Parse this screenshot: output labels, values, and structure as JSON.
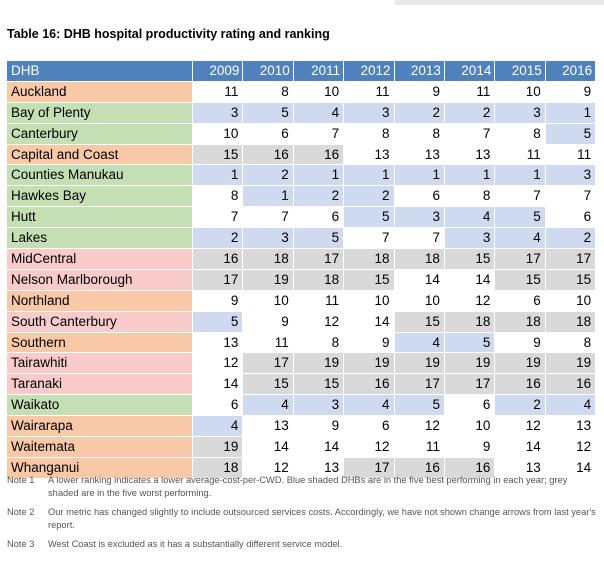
{
  "title": "Table 16: DHB hospital productivity rating and ranking",
  "colors": {
    "header": "#4f81bd",
    "green": "#c4dfb4",
    "orange": "#f9c9a7",
    "pink": "#f9cbcb",
    "best_blue": "#cfd9ef",
    "worst_grey": "#d9d9d9"
  },
  "table": {
    "header_label": "DHB",
    "years": [
      "2009",
      "2010",
      "2011",
      "2012",
      "2013",
      "2014",
      "2015",
      "2016"
    ],
    "rows": [
      {
        "name": "Auckland",
        "group": "orange",
        "values": [
          "11",
          "8",
          "10",
          "11",
          "9",
          "11",
          "10",
          "9"
        ],
        "shading": [
          "n",
          "n",
          "n",
          "n",
          "n",
          "n",
          "n",
          "n"
        ]
      },
      {
        "name": "Bay of Plenty",
        "group": "green",
        "values": [
          "3",
          "5",
          "4",
          "3",
          "2",
          "2",
          "3",
          "1"
        ],
        "shading": [
          "b",
          "b",
          "b",
          "b",
          "b",
          "b",
          "b",
          "b"
        ]
      },
      {
        "name": "Canterbury",
        "group": "green",
        "values": [
          "10",
          "6",
          "7",
          "8",
          "8",
          "7",
          "8",
          "5"
        ],
        "shading": [
          "n",
          "n",
          "n",
          "n",
          "n",
          "n",
          "n",
          "b"
        ]
      },
      {
        "name": "Capital and Coast",
        "group": "orange",
        "values": [
          "15",
          "16",
          "16",
          "13",
          "13",
          "13",
          "11",
          "11"
        ],
        "shading": [
          "g",
          "g",
          "g",
          "n",
          "n",
          "n",
          "n",
          "n"
        ]
      },
      {
        "name": "Counties Manukau",
        "group": "green",
        "values": [
          "1",
          "2",
          "1",
          "1",
          "1",
          "1",
          "1",
          "3"
        ],
        "shading": [
          "b",
          "b",
          "b",
          "b",
          "b",
          "b",
          "b",
          "b"
        ]
      },
      {
        "name": "Hawkes Bay",
        "group": "green",
        "values": [
          "8",
          "1",
          "2",
          "2",
          "6",
          "8",
          "7",
          "7"
        ],
        "shading": [
          "n",
          "b",
          "b",
          "b",
          "n",
          "n",
          "n",
          "n"
        ]
      },
      {
        "name": "Hutt",
        "group": "green",
        "values": [
          "7",
          "7",
          "6",
          "5",
          "3",
          "4",
          "5",
          "6"
        ],
        "shading": [
          "n",
          "n",
          "n",
          "b",
          "b",
          "b",
          "b",
          "n"
        ]
      },
      {
        "name": "Lakes",
        "group": "green",
        "values": [
          "2",
          "3",
          "5",
          "7",
          "7",
          "3",
          "4",
          "2"
        ],
        "shading": [
          "b",
          "b",
          "b",
          "n",
          "n",
          "b",
          "b",
          "b"
        ]
      },
      {
        "name": "MidCentral",
        "group": "pink",
        "values": [
          "16",
          "18",
          "17",
          "18",
          "18",
          "15",
          "17",
          "17"
        ],
        "shading": [
          "g",
          "g",
          "g",
          "g",
          "g",
          "g",
          "g",
          "g"
        ]
      },
      {
        "name": "Nelson Marlborough",
        "group": "pink",
        "values": [
          "17",
          "19",
          "18",
          "15",
          "14",
          "14",
          "15",
          "15"
        ],
        "shading": [
          "g",
          "g",
          "g",
          "g",
          "n",
          "n",
          "g",
          "g"
        ]
      },
      {
        "name": "Northland",
        "group": "orange",
        "values": [
          "9",
          "10",
          "11",
          "10",
          "10",
          "12",
          "6",
          "10"
        ],
        "shading": [
          "n",
          "n",
          "n",
          "n",
          "n",
          "n",
          "n",
          "n"
        ]
      },
      {
        "name": "South Canterbury",
        "group": "pink",
        "values": [
          "5",
          "9",
          "12",
          "14",
          "15",
          "18",
          "18",
          "18"
        ],
        "shading": [
          "b",
          "n",
          "n",
          "n",
          "g",
          "g",
          "g",
          "g"
        ]
      },
      {
        "name": "Southern",
        "group": "orange",
        "values": [
          "13",
          "11",
          "8",
          "9",
          "4",
          "5",
          "9",
          "8"
        ],
        "shading": [
          "n",
          "n",
          "n",
          "n",
          "b",
          "b",
          "n",
          "n"
        ]
      },
      {
        "name": "Tairawhiti",
        "group": "pink",
        "values": [
          "12",
          "17",
          "19",
          "19",
          "19",
          "19",
          "19",
          "19"
        ],
        "shading": [
          "n",
          "g",
          "g",
          "g",
          "g",
          "g",
          "g",
          "g"
        ]
      },
      {
        "name": "Taranaki",
        "group": "pink",
        "values": [
          "14",
          "15",
          "15",
          "16",
          "17",
          "17",
          "16",
          "16"
        ],
        "shading": [
          "n",
          "g",
          "g",
          "g",
          "g",
          "g",
          "g",
          "g"
        ]
      },
      {
        "name": "Waikato",
        "group": "green",
        "values": [
          "6",
          "4",
          "3",
          "4",
          "5",
          "6",
          "2",
          "4"
        ],
        "shading": [
          "n",
          "b",
          "b",
          "b",
          "b",
          "n",
          "b",
          "b"
        ]
      },
      {
        "name": "Wairarapa",
        "group": "orange",
        "values": [
          "4",
          "13",
          "9",
          "6",
          "12",
          "10",
          "12",
          "13"
        ],
        "shading": [
          "b",
          "n",
          "n",
          "n",
          "n",
          "n",
          "n",
          "n"
        ]
      },
      {
        "name": "Waitemata",
        "group": "orange",
        "values": [
          "19",
          "14",
          "14",
          "12",
          "11",
          "9",
          "14",
          "12"
        ],
        "shading": [
          "g",
          "n",
          "n",
          "n",
          "n",
          "n",
          "n",
          "n"
        ]
      },
      {
        "name": "Whanganui",
        "group": "orange",
        "values": [
          "18",
          "12",
          "13",
          "17",
          "16",
          "16",
          "13",
          "14"
        ],
        "shading": [
          "g",
          "n",
          "n",
          "g",
          "g",
          "g",
          "n",
          "n"
        ]
      }
    ]
  },
  "notes": [
    {
      "label": "Note 1",
      "text": "A lower ranking indicates a lower average-cost-per-CWD. Blue shaded DHBs are in the five best performing in each year; grey shaded are in the five worst performing."
    },
    {
      "label": "Note 2",
      "text": "Our metric has changed slightly to include outsourced services costs. Accordingly, we have not shown change arrows from last year's report."
    },
    {
      "label": "Note 3",
      "text": "West Coast is excluded as it has a substantially different service model."
    }
  ]
}
